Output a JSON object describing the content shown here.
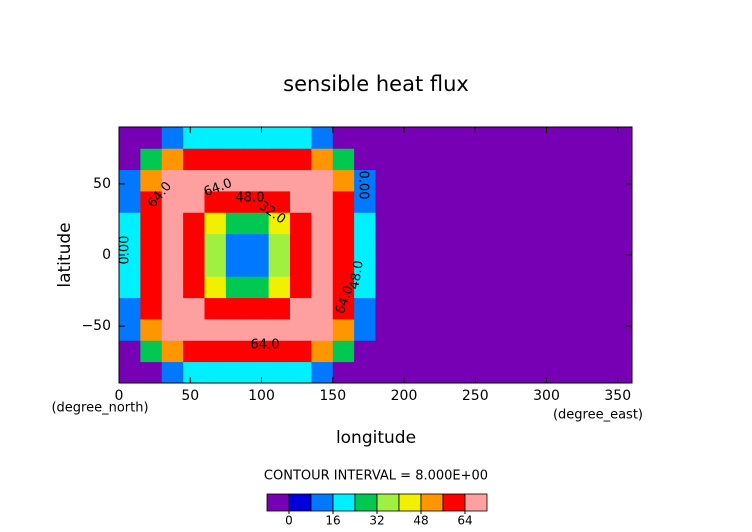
{
  "chart_data": {
    "type": "contour",
    "title": "sensible heat flux",
    "x_label": "longitude",
    "y_label": "latitude",
    "x_units": "(degree_east)",
    "y_units": "(degree_north)",
    "interval_text": "CONTOUR INTERVAL = 8.000E+00",
    "xlim": [
      0,
      360
    ],
    "ylim": [
      -90,
      90
    ],
    "xticks": [
      0,
      50,
      100,
      150,
      200,
      250,
      300,
      350
    ],
    "yticks": [
      {
        "value": -50,
        "label": "−50"
      },
      0,
      50
    ],
    "x": [
      7.5,
      22.5,
      37.5,
      52.5,
      67.5,
      82.5,
      97.5,
      112.5,
      127.5,
      142.5,
      157.5,
      172.5,
      187.5,
      202.5,
      217.5,
      232.5,
      247.5,
      262.5,
      277.5,
      292.5,
      307.5,
      322.5,
      337.5,
      352.5
    ],
    "y": [
      -82.5,
      -67.5,
      -52.5,
      -37.5,
      -22.5,
      -7.5,
      7.5,
      22.5,
      37.5,
      52.5,
      67.5,
      82.5
    ],
    "z": [
      [
        0,
        0,
        13,
        21,
        24,
        24,
        24,
        24,
        21,
        13,
        0,
        0,
        0,
        0,
        0,
        0,
        0,
        0,
        0,
        0,
        0,
        0,
        0,
        0
      ],
      [
        0,
        29,
        52,
        60,
        62,
        62,
        62,
        62,
        60,
        52,
        29,
        0,
        0,
        0,
        0,
        0,
        0,
        0,
        0,
        0,
        0,
        0,
        0,
        0
      ],
      [
        9,
        50,
        67,
        70,
        70,
        70,
        70,
        70,
        70,
        67,
        50,
        9,
        0,
        0,
        0,
        0,
        0,
        0,
        0,
        0,
        0,
        0,
        0,
        0
      ],
      [
        15,
        58,
        69,
        68,
        61,
        60,
        60,
        61,
        68,
        69,
        58,
        15,
        0,
        0,
        0,
        0,
        0,
        0,
        0,
        0,
        0,
        0,
        0,
        0
      ],
      [
        18,
        60,
        70,
        62,
        43,
        32,
        32,
        43,
        62,
        70,
        60,
        18,
        0,
        0,
        0,
        0,
        0,
        0,
        0,
        0,
        0,
        0,
        0,
        0
      ],
      [
        18,
        60,
        70,
        61,
        34,
        13,
        13,
        34,
        61,
        70,
        60,
        18,
        0,
        0,
        0,
        0,
        0,
        0,
        0,
        0,
        0,
        0,
        0,
        0
      ],
      [
        18,
        60,
        70,
        61,
        34,
        13,
        13,
        34,
        61,
        70,
        60,
        18,
        0,
        0,
        0,
        0,
        0,
        0,
        0,
        0,
        0,
        0,
        0,
        0
      ],
      [
        18,
        60,
        70,
        62,
        43,
        32,
        32,
        43,
        62,
        70,
        60,
        18,
        0,
        0,
        0,
        0,
        0,
        0,
        0,
        0,
        0,
        0,
        0,
        0
      ],
      [
        15,
        58,
        69,
        68,
        61,
        60,
        60,
        61,
        68,
        69,
        58,
        15,
        0,
        0,
        0,
        0,
        0,
        0,
        0,
        0,
        0,
        0,
        0,
        0
      ],
      [
        9,
        50,
        67,
        70,
        70,
        70,
        70,
        70,
        70,
        67,
        50,
        9,
        0,
        0,
        0,
        0,
        0,
        0,
        0,
        0,
        0,
        0,
        0,
        0
      ],
      [
        0,
        29,
        52,
        60,
        62,
        62,
        62,
        62,
        60,
        52,
        29,
        0,
        0,
        0,
        0,
        0,
        0,
        0,
        0,
        0,
        0,
        0,
        0,
        0
      ],
      [
        0,
        0,
        13,
        21,
        24,
        24,
        24,
        24,
        21,
        13,
        0,
        0,
        0,
        0,
        0,
        0,
        0,
        0,
        0,
        0,
        0,
        0,
        0,
        0
      ]
    ],
    "levels": [
      0,
      8,
      16,
      24,
      32,
      40,
      48,
      56,
      64
    ],
    "colors": [
      "#7800b4",
      "#0000dc",
      "#0078ff",
      "#00f0ff",
      "#00c850",
      "#a0f040",
      "#f0f000",
      "#ff9600",
      "#ff0000",
      "#ffa0a0"
    ],
    "colorbar_ticks": [
      0,
      16,
      32,
      48,
      64
    ],
    "contour_labels": [
      "64.0",
      "64.0",
      "48.0",
      "32.0",
      "64.0",
      "64.0",
      "48.0",
      "0.00",
      "0.00"
    ]
  }
}
